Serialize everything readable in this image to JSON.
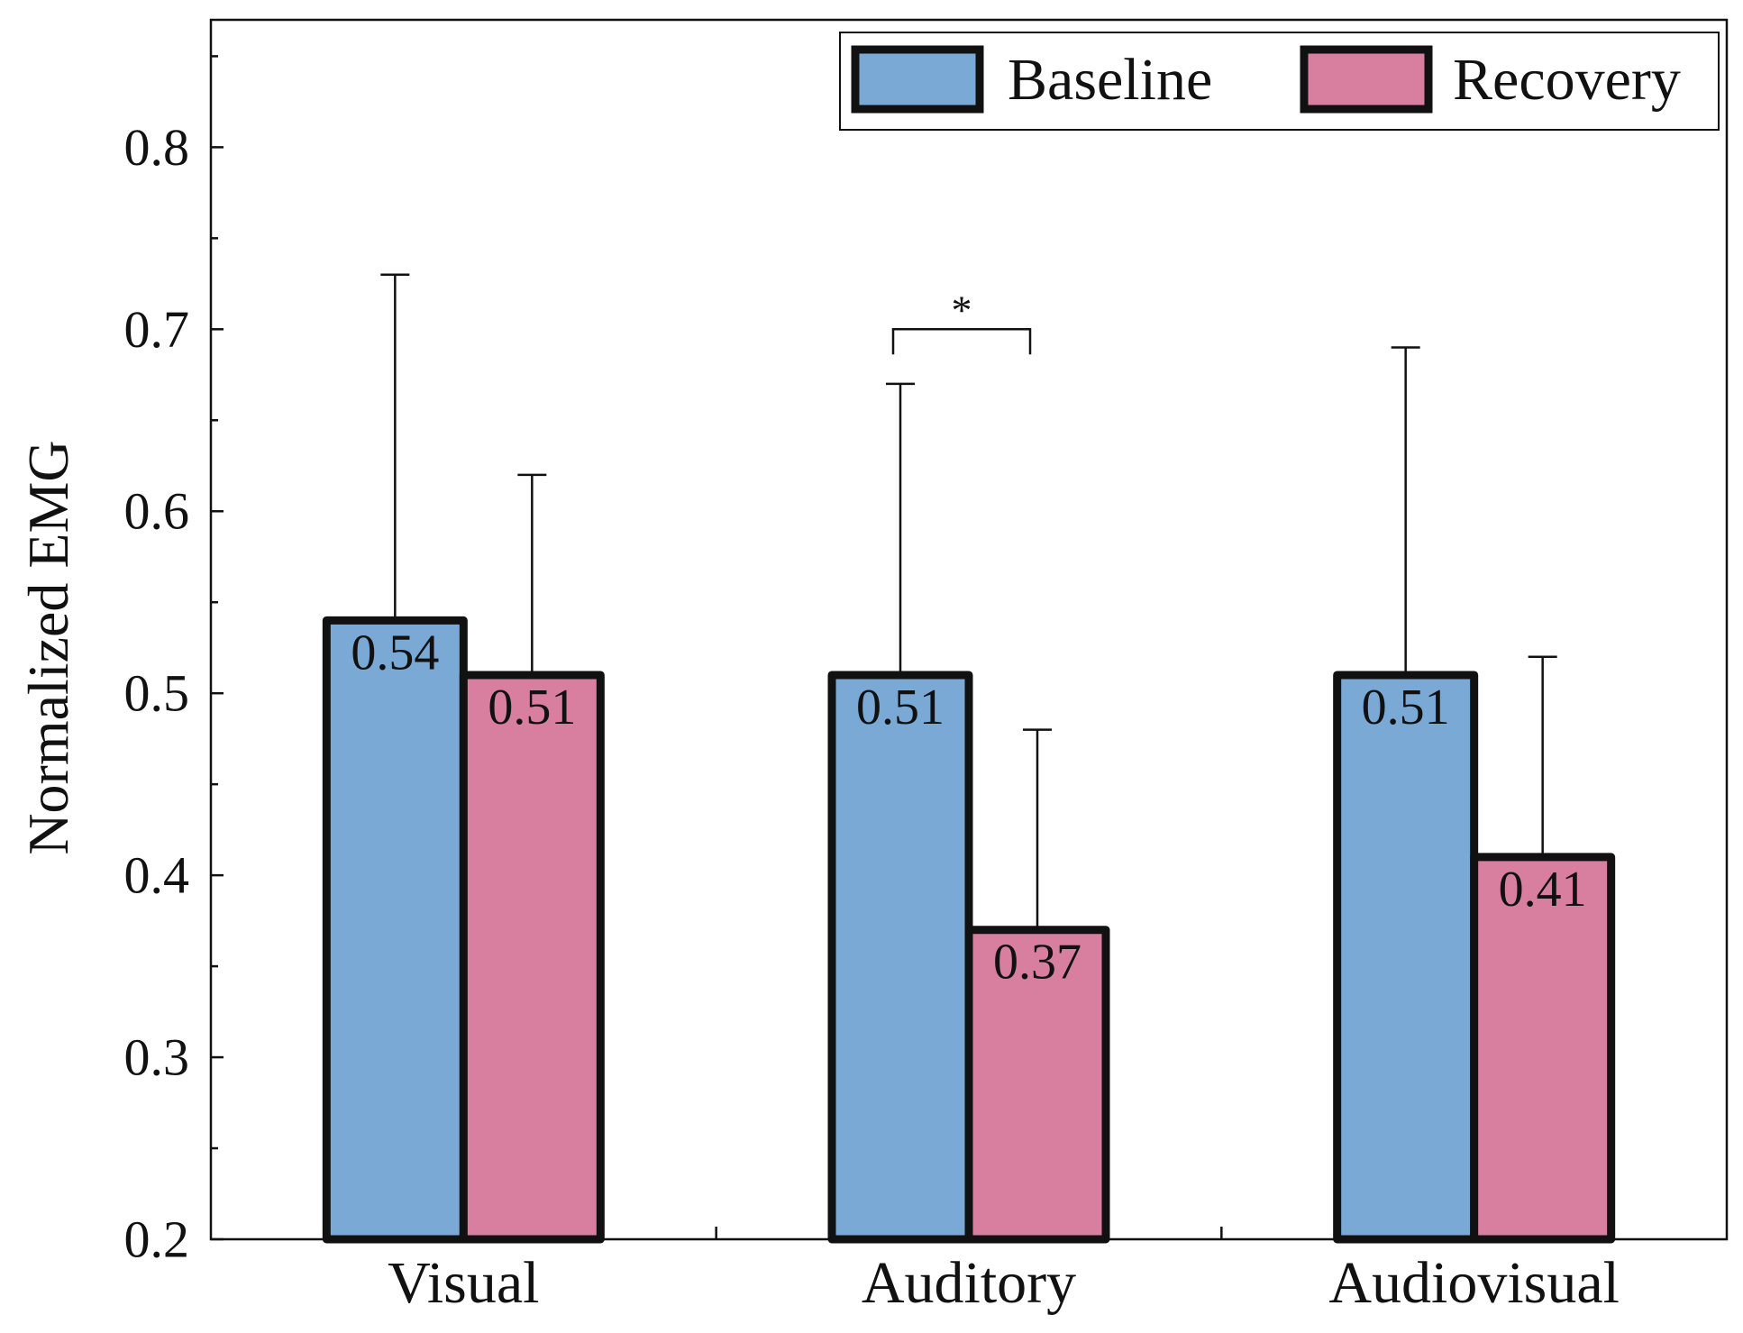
{
  "chart_data": {
    "type": "bar",
    "title": "",
    "xlabel": "",
    "ylabel": "Normalized EMG",
    "ylim": [
      0.2,
      0.87
    ],
    "yticks": [
      "0.2",
      "0.3",
      "0.4",
      "0.5",
      "0.6",
      "0.7",
      "0.8"
    ],
    "categories": [
      "Visual",
      "Auditory",
      "Audiovisual"
    ],
    "series": [
      {
        "name": "Baseline",
        "color": "#7aa9d6",
        "values": [
          0.54,
          0.51,
          0.51
        ],
        "labels": [
          "0.54",
          "0.51",
          "0.51"
        ],
        "error_upper": [
          0.73,
          0.67,
          0.69
        ]
      },
      {
        "name": "Recovery",
        "color": "#d87fa0",
        "values": [
          0.51,
          0.37,
          0.41
        ],
        "labels": [
          "0.51",
          "0.37",
          "0.41"
        ],
        "error_upper": [
          0.62,
          0.48,
          0.52
        ]
      }
    ],
    "legend": {
      "position": "top-right",
      "labels": [
        "Baseline",
        "Recovery"
      ]
    },
    "significance": [
      {
        "category": "Auditory",
        "label": "*",
        "level": 0.7
      }
    ],
    "grid": false
  }
}
